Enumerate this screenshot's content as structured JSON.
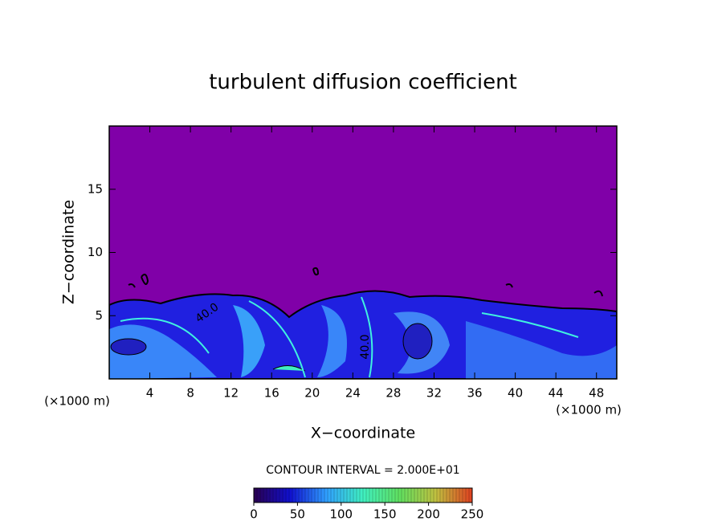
{
  "chart_data": {
    "type": "contour",
    "title": "turbulent diffusion coefficient",
    "x_label": "X−coordinate",
    "y_label": "Z−coordinate",
    "x_unit": "(×1000 m)",
    "y_unit": "(×1000 m)",
    "xlim": [
      0,
      50
    ],
    "ylim": [
      0,
      20
    ],
    "xticks": [
      4,
      8,
      12,
      16,
      20,
      24,
      28,
      32,
      36,
      40,
      44,
      48
    ],
    "yticks": [
      5,
      10,
      15
    ],
    "contour_interval_label": "CONTOUR INTERVAL = 2.000E+01",
    "contour_labels": [
      "40.0",
      "40.0"
    ],
    "clim": [
      0,
      250
    ],
    "cticks": [
      0,
      50,
      100,
      150,
      200,
      250
    ],
    "colormap": [
      "#2a0050",
      "#1010d0",
      "#30a0ff",
      "#40f0c0",
      "#60e060",
      "#c0c040",
      "#e04020"
    ],
    "background_color": "#8000a8"
  }
}
